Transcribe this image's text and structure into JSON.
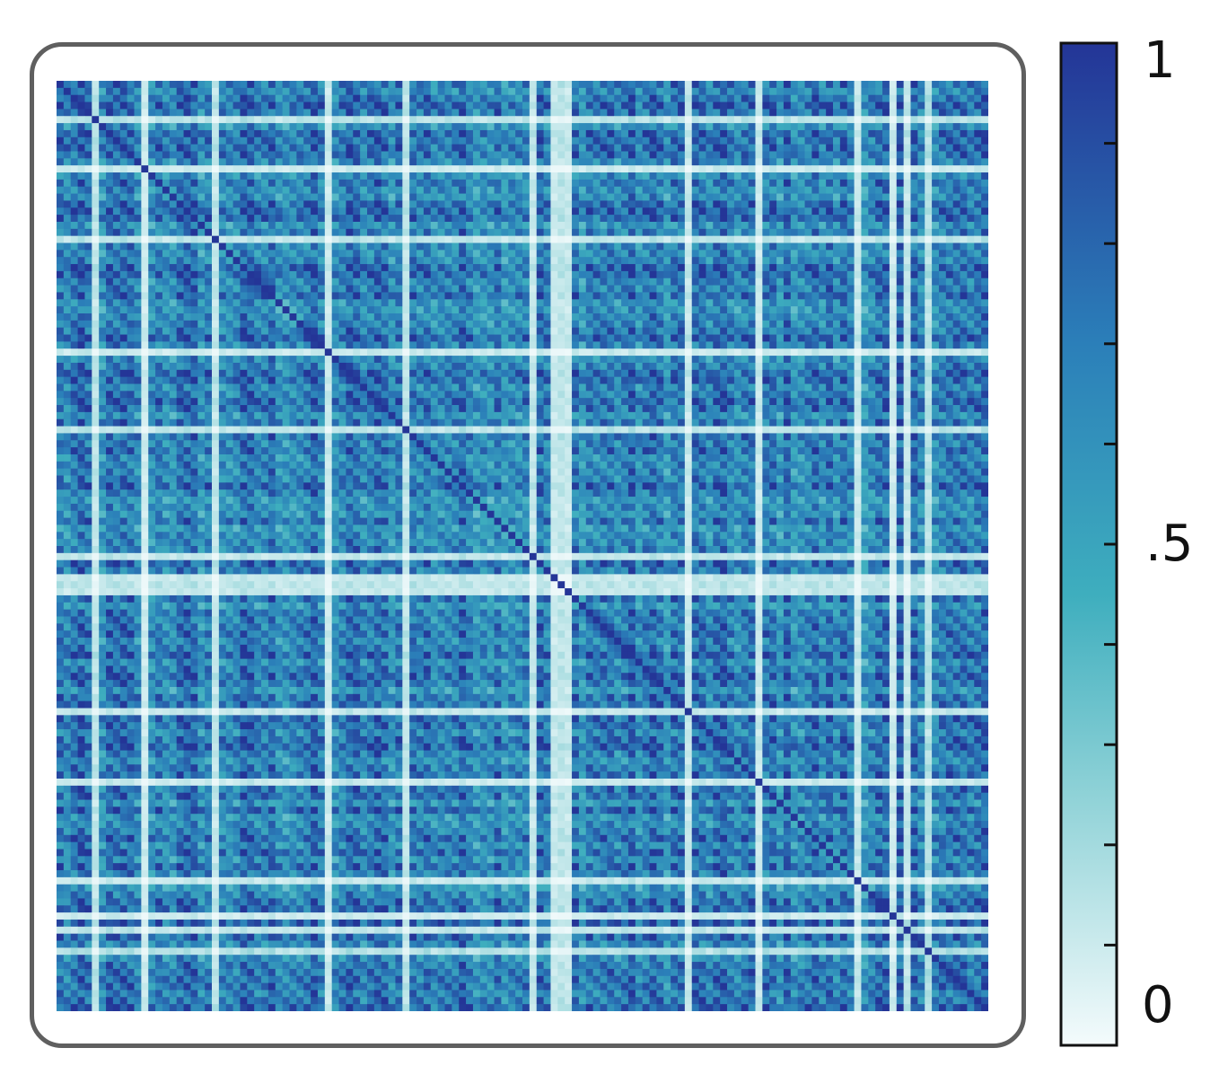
{
  "chart_data": {
    "type": "heatmap",
    "title": "",
    "xlabel": "",
    "ylabel": "",
    "grid_size": [
      132,
      132
    ],
    "value_range": [
      0,
      1
    ],
    "colormap": {
      "name": "white-to-blue",
      "stops": [
        {
          "value": 0.0,
          "color": "#f4fbfc"
        },
        {
          "value": 0.25,
          "color": "#8fd2d7"
        },
        {
          "value": 0.45,
          "color": "#3eaebe"
        },
        {
          "value": 0.7,
          "color": "#2b7fb9"
        },
        {
          "value": 1.0,
          "color": "#243597"
        }
      ]
    },
    "low_value_band_indices": [
      5,
      12,
      22,
      38,
      49,
      67,
      70,
      71,
      72,
      89,
      99,
      113,
      118,
      120,
      123
    ],
    "colorbar": {
      "ticks": [
        {
          "value": 1,
          "label": "1"
        },
        {
          "value": 0.5,
          "label": ".5"
        },
        {
          "value": 0,
          "label": "0"
        }
      ],
      "minor_tick_count": 9,
      "placement": "right"
    }
  }
}
